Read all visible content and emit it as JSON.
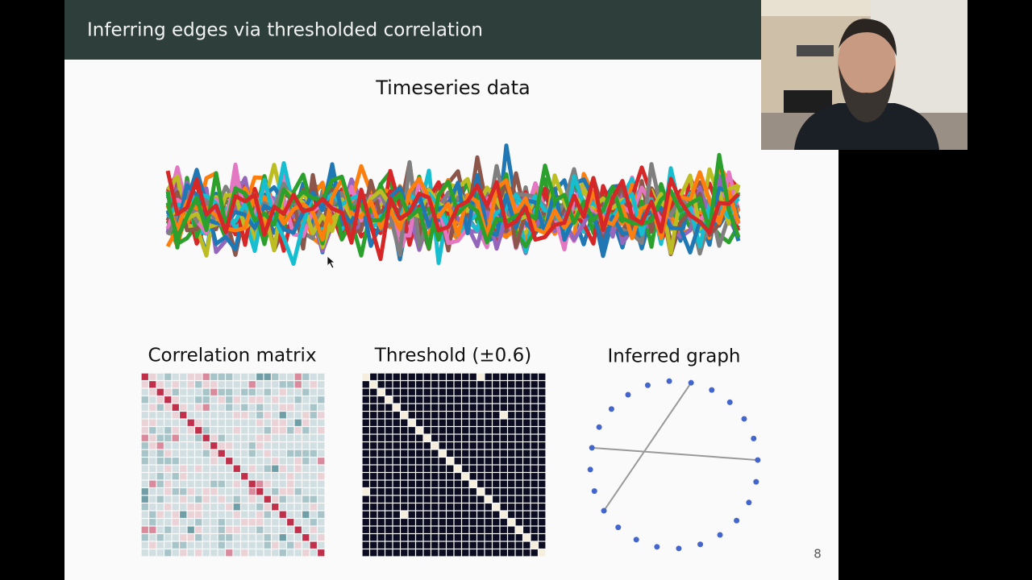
{
  "slide": {
    "title": "Inferring edges via thresholded correlation",
    "page_number": "8"
  },
  "panels": {
    "timeseries_title": "Timeseries data",
    "correlation_title": "Correlation matrix",
    "threshold_title": "Threshold (±0.6)",
    "graph_title": "Inferred graph"
  }
}
